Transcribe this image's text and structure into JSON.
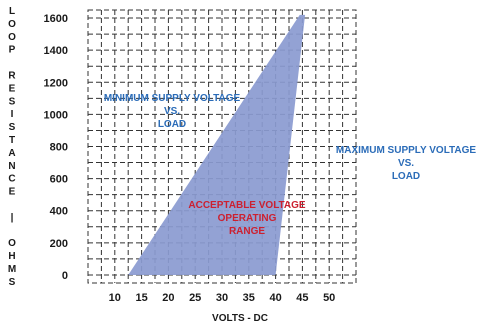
{
  "chart_data": {
    "type": "area",
    "title": "",
    "xlabel": "VOLTS   - DC",
    "ylabel_letters": [
      "L",
      "O",
      "O",
      "P",
      "",
      "R",
      "E",
      "S",
      "I",
      "S",
      "T",
      "A",
      "N",
      "C",
      "E",
      "",
      "|",
      "",
      "O",
      "H",
      "M",
      "S"
    ],
    "x_ticks": [
      10,
      15,
      20,
      25,
      30,
      35,
      40,
      45,
      50
    ],
    "y_ticks": [
      0,
      200,
      400,
      600,
      800,
      1000,
      1200,
      1400,
      1600
    ],
    "xlim": [
      5,
      55
    ],
    "ylim": [
      -50,
      1650
    ],
    "grid": true,
    "region": {
      "name": "ACCEPTABLE VOLTAGE OPERATING RANGE",
      "polygon": [
        {
          "x": 12.5,
          "y": 0
        },
        {
          "x": 40.0,
          "y": 0
        },
        {
          "x": 45.5,
          "y": 1620
        },
        {
          "x": 44.5,
          "y": 1620
        }
      ],
      "fill_color": "#8a9ad0"
    },
    "annotations": [
      {
        "id": "min",
        "lines": [
          "MINIMUM SUPPLY VOLTAGE",
          "VS.",
          "LOAD"
        ],
        "color": "#2b6cb8"
      },
      {
        "id": "max",
        "lines": [
          "MAXIMUM SUPPLY VOLTAGE",
          "VS.",
          "LOAD"
        ],
        "color": "#2b6cb8"
      },
      {
        "id": "range",
        "lines": [
          "ACCEPTABLE VOLTAGE",
          "OPERATING",
          "RANGE"
        ],
        "color": "#cc2030"
      }
    ]
  }
}
